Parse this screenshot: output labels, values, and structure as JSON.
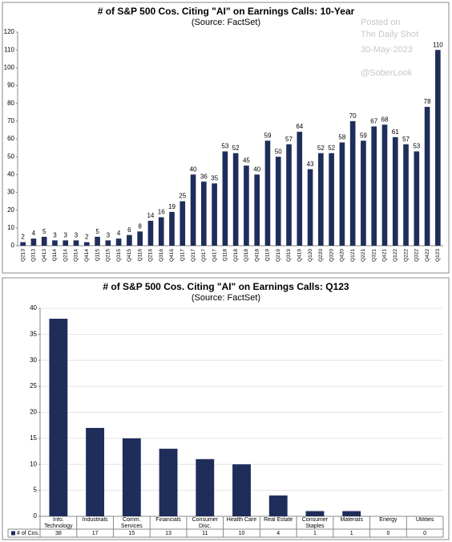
{
  "chart_data": [
    {
      "type": "bar",
      "title": "# of S&P 500 Cos. Citing \"AI\" on Earnings Calls: 10-Year",
      "subtitle": "(Source: FactSet)",
      "annotations": [
        "Posted on",
        "The Daily Shot",
        "30-May-2023",
        "@SoberLook"
      ],
      "categories": [
        "Q213",
        "Q313",
        "Q413",
        "Q114",
        "Q214",
        "Q314",
        "Q414",
        "Q115",
        "Q215",
        "Q315",
        "Q415",
        "Q116",
        "Q216",
        "Q316",
        "Q416",
        "Q117",
        "Q217",
        "Q317",
        "Q417",
        "Q118",
        "Q218",
        "Q318",
        "Q418",
        "Q119",
        "Q219",
        "Q319",
        "Q419",
        "Q120",
        "Q220",
        "Q320",
        "Q420",
        "Q121",
        "Q221",
        "Q321",
        "Q421",
        "Q122",
        "Q222",
        "Q322",
        "Q422",
        "Q123"
      ],
      "values": [
        2,
        4,
        5,
        3,
        3,
        3,
        2,
        5,
        3,
        4,
        6,
        8,
        14,
        16,
        19,
        25,
        40,
        36,
        35,
        53,
        52,
        45,
        40,
        59,
        50,
        57,
        64,
        43,
        52,
        52,
        58,
        70,
        59,
        67,
        68,
        61,
        57,
        53,
        78,
        110
      ],
      "color": "#1f2d5a",
      "ylim": [
        0,
        120
      ],
      "yticks": [
        0,
        10,
        20,
        30,
        40,
        50,
        60,
        70,
        80,
        90,
        100,
        110,
        120
      ],
      "grid": false
    },
    {
      "type": "bar",
      "title": "# of S&P 500 Cos. Citing \"AI\" on Earnings Calls: Q123",
      "subtitle": "(Source: FactSet)",
      "categories": [
        "Info. Technology",
        "Industrials",
        "Comm. Services",
        "Financials",
        "Consumer Disc.",
        "Health Care",
        "Real Estate",
        "Consumer Staples",
        "Materials",
        "Energy",
        "Utilities"
      ],
      "series": [
        {
          "name": "# of Cos.",
          "color": "#1f2d5a",
          "values": [
            38,
            17,
            15,
            13,
            11,
            10,
            4,
            1,
            1,
            0,
            0
          ]
        }
      ],
      "ylim": [
        0,
        40
      ],
      "yticks": [
        0,
        5,
        10,
        15,
        20,
        25,
        30,
        35,
        40
      ],
      "grid": true
    }
  ]
}
